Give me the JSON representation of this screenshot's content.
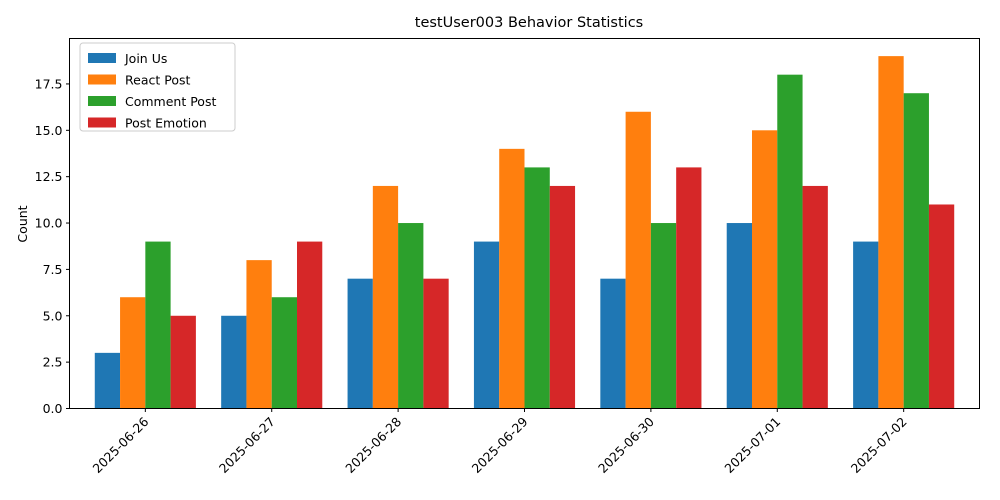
{
  "chart_data": {
    "type": "bar",
    "title": "testUser003 Behavior Statistics",
    "xlabel": "",
    "ylabel": "Count",
    "categories": [
      "2025-06-26",
      "2025-06-27",
      "2025-06-28",
      "2025-06-29",
      "2025-06-30",
      "2025-07-01",
      "2025-07-02"
    ],
    "series": [
      {
        "name": "Join Us",
        "color": "#1f77b4",
        "values": [
          3,
          5,
          7,
          9,
          7,
          10,
          9
        ]
      },
      {
        "name": "React Post",
        "color": "#ff7f0e",
        "values": [
          6,
          8,
          12,
          14,
          16,
          15,
          19
        ]
      },
      {
        "name": "Comment Post",
        "color": "#2ca02c",
        "values": [
          9,
          6,
          10,
          13,
          10,
          18,
          17
        ]
      },
      {
        "name": "Post Emotion",
        "color": "#d62728",
        "values": [
          5,
          9,
          7,
          12,
          13,
          12,
          11
        ]
      }
    ],
    "ylim": [
      0,
      19.95
    ],
    "yticks": [
      "0.0",
      "2.5",
      "5.0",
      "7.5",
      "10.0",
      "12.5",
      "15.0",
      "17.5"
    ],
    "grid": false,
    "legend_position": "top-left"
  }
}
